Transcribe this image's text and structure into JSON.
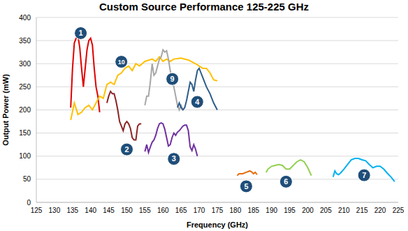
{
  "chart_data": {
    "type": "line",
    "title": "Custom Source Performance 125-225 GHz",
    "x_label": "Frequency (GHz)",
    "y_label": "Output Power (mW)",
    "xlim": [
      125,
      225
    ],
    "xticks": [
      125,
      130,
      135,
      140,
      145,
      150,
      155,
      160,
      165,
      170,
      175,
      180,
      185,
      190,
      195,
      200,
      205,
      210,
      215,
      220,
      225
    ],
    "ylim": [
      0,
      400
    ],
    "yticks": [
      0,
      50,
      100,
      150,
      200,
      250,
      300,
      350,
      400
    ],
    "grid": true,
    "series": [
      {
        "name": "1",
        "color": "#e00000",
        "x": [
          134.5,
          135,
          135.5,
          136,
          136.5,
          137,
          137.5,
          138,
          138.5,
          139,
          139.5,
          140,
          140.5,
          141,
          141.5,
          142,
          142.5
        ],
        "values": [
          205,
          290,
          345,
          355,
          360,
          335,
          290,
          250,
          290,
          330,
          350,
          355,
          340,
          290,
          250,
          230,
          195
        ]
      },
      {
        "name": "10",
        "color": "#ffc000",
        "x": [
          134.5,
          135.5,
          136.5,
          137.5,
          138.5,
          139.5,
          140.5,
          141.5,
          142.5,
          143.5,
          144.5,
          145.5,
          146.5,
          147.5,
          148.5,
          149.5,
          150.5,
          151.5,
          152.5,
          153.5,
          155,
          157,
          158,
          159,
          160,
          161,
          162,
          163,
          165,
          167,
          169,
          171,
          172,
          173,
          174,
          175
        ],
        "values": [
          178,
          215,
          190,
          195,
          205,
          210,
          200,
          215,
          230,
          225,
          255,
          260,
          255,
          275,
          280,
          290,
          295,
          285,
          300,
          295,
          305,
          310,
          305,
          315,
          305,
          310,
          305,
          310,
          312,
          308,
          300,
          290,
          290,
          280,
          265,
          263
        ]
      },
      {
        "name": "2",
        "color": "#8b2525",
        "x": [
          144.5,
          145,
          145.5,
          146,
          146.5,
          147,
          147.5,
          148,
          148.5,
          149,
          149.5,
          150,
          150.5,
          151,
          151.5,
          152,
          152.5,
          153,
          153.5,
          154
        ],
        "values": [
          215,
          230,
          240,
          235,
          235,
          220,
          200,
          175,
          165,
          155,
          170,
          175,
          170,
          160,
          140,
          135,
          135,
          165,
          170,
          170
        ]
      },
      {
        "name": "3",
        "color": "#7030a0",
        "x": [
          155,
          155.5,
          156,
          156.5,
          157,
          157.5,
          158,
          158.5,
          159,
          159.5,
          160,
          160.5,
          161,
          161.5,
          162,
          162.5,
          163,
          163.5,
          164,
          164.5,
          165,
          165.5,
          166,
          166.5,
          167,
          167.5,
          168,
          168.5,
          169,
          169.5
        ],
        "values": [
          110,
          125,
          108,
          120,
          130,
          135,
          145,
          160,
          170,
          172,
          170,
          158,
          140,
          122,
          125,
          140,
          150,
          145,
          152,
          155,
          160,
          165,
          167,
          167,
          155,
          120,
          112,
          125,
          115,
          100
        ]
      },
      {
        "name": "9",
        "color": "#a6a6a6",
        "x": [
          155,
          155.5,
          156,
          156.5,
          157,
          157.5,
          158,
          158.5,
          159,
          159.5,
          160,
          160.5,
          161,
          161.5,
          162,
          162.5,
          163,
          163.5,
          164,
          164.5,
          165,
          165.5
        ],
        "values": [
          210,
          230,
          230,
          260,
          300,
          275,
          280,
          295,
          310,
          315,
          330,
          325,
          328,
          310,
          285,
          270,
          250,
          230,
          210,
          200,
          210,
          200
        ]
      },
      {
        "name": "4",
        "color": "#2e5d8a",
        "x": [
          164,
          164.5,
          165,
          165.5,
          166,
          166.5,
          167,
          167.5,
          168,
          168.5,
          169,
          169.5,
          170,
          170.5,
          171,
          172,
          173,
          174,
          175
        ],
        "values": [
          205,
          215,
          205,
          200,
          205,
          220,
          240,
          260,
          255,
          240,
          265,
          285,
          290,
          280,
          270,
          250,
          235,
          215,
          200
        ]
      },
      {
        "name": "5",
        "color": "#e46c0a",
        "x": [
          180.5,
          181,
          182,
          183,
          184,
          184.5,
          185,
          185.5,
          186
        ],
        "values": [
          58,
          62,
          62,
          65,
          68,
          66,
          62,
          65,
          60
        ]
      },
      {
        "name": "6",
        "color": "#92d050",
        "x": [
          188.5,
          189,
          190,
          191,
          192,
          193,
          194,
          195,
          196,
          197,
          198,
          199,
          200,
          201
        ],
        "values": [
          65,
          72,
          78,
          80,
          82,
          80,
          72,
          72,
          80,
          88,
          92,
          88,
          75,
          58
        ]
      },
      {
        "name": "7",
        "color": "#00b0f0",
        "x": [
          207,
          207.5,
          208,
          208.5,
          209,
          210,
          211,
          212,
          213,
          214,
          215,
          216,
          217,
          218,
          219,
          220,
          221,
          222,
          223,
          224
        ],
        "values": [
          55,
          68,
          62,
          60,
          63,
          72,
          82,
          92,
          95,
          95,
          92,
          90,
          82,
          75,
          78,
          78,
          72,
          63,
          55,
          45
        ]
      }
    ]
  }
}
